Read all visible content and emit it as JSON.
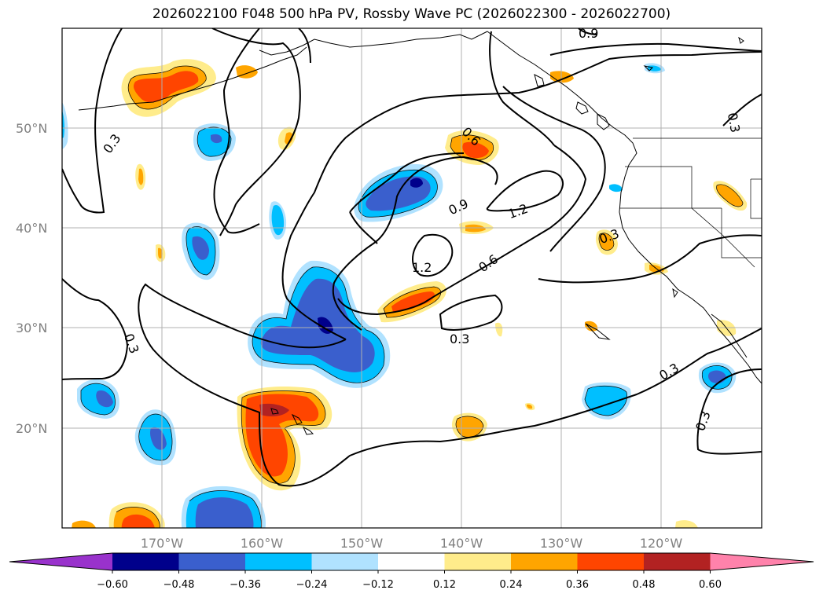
{
  "title": "2026022100 F048 500 hPa PV, Rossby Wave PC (2026022300 - 2026022700)",
  "lat_labels": [
    "50°N",
    "40°N",
    "30°N",
    "20°N"
  ],
  "lon_labels": [
    "170°W",
    "160°W",
    "150°W",
    "140°W",
    "130°W",
    "120°W"
  ],
  "contour_labels": [
    "0.3",
    "0.3",
    "0.6",
    "0.9",
    "1.2",
    "1.2",
    "0.6",
    "0.3",
    "0.9",
    "0.3",
    "0.3",
    "0.3",
    "0.3",
    "0.3"
  ],
  "colorbar": {
    "colors": [
      "#9932cc",
      "#00008b",
      "#3a5fcd",
      "#00bfff",
      "#b0e2ff",
      "#ffffff",
      "#ffec8b",
      "#ffa500",
      "#ff4500",
      "#b22222",
      "#ff82ab"
    ],
    "tick_labels": [
      "−0.60",
      "−0.48",
      "−0.36",
      "−0.24",
      "−0.12",
      "0.12",
      "0.24",
      "0.36",
      "0.48",
      "0.60"
    ]
  },
  "map": {
    "lon_range": [
      -180,
      -110
    ],
    "lat_range": [
      10,
      60
    ],
    "gridlines": true,
    "field": "500 hPa PV, Rossby Wave PC"
  }
}
